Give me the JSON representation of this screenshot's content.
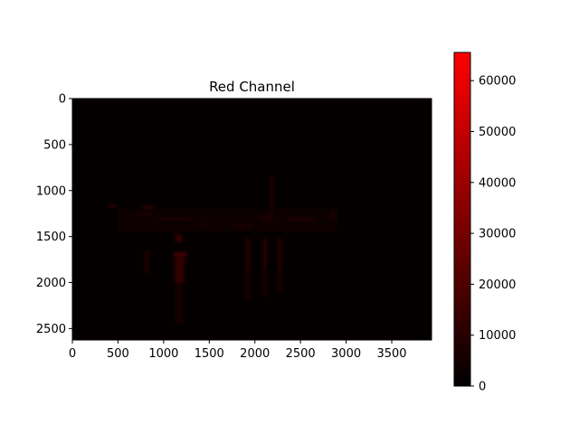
{
  "chart_data": {
    "type": "heatmap",
    "title": "Red Channel",
    "xlabel": "",
    "ylabel": "",
    "image_extent": {
      "x": [
        0,
        3936
      ],
      "y": [
        2624,
        0
      ]
    },
    "xticks": [
      0,
      500,
      1000,
      1500,
      2000,
      2500,
      3000,
      3500
    ],
    "xtick_labels": [
      "0",
      "500",
      "1000",
      "1500",
      "2000",
      "2500",
      "3000",
      "3500"
    ],
    "yticks": [
      0,
      500,
      1000,
      1500,
      2000,
      2500
    ],
    "ytick_labels": [
      "0",
      "500",
      "1000",
      "1500",
      "2000",
      "2500"
    ],
    "colorbar": {
      "range": [
        0,
        65535
      ],
      "ticks": [
        0,
        10000,
        20000,
        30000,
        40000,
        50000,
        60000
      ],
      "tick_labels": [
        "0",
        "10000",
        "20000",
        "30000",
        "40000",
        "50000",
        "60000"
      ],
      "colors": [
        "#000000",
        "#ff0000"
      ]
    },
    "features": [
      {
        "x": [
          950,
          1300
        ],
        "y": [
          1290,
          1330
        ],
        "value": 9000
      },
      {
        "x": [
          690,
          860
        ],
        "y": [
          1240,
          1280
        ],
        "value": 7000
      },
      {
        "x": [
          400,
          480
        ],
        "y": [
          1150,
          1180
        ],
        "value": 6500
      },
      {
        "x": [
          770,
          900
        ],
        "y": [
          1160,
          1200
        ],
        "value": 4000
      },
      {
        "x": [
          1380,
          1460
        ],
        "y": [
          1350,
          1400
        ],
        "value": 5000
      },
      {
        "x": [
          1760,
          1960
        ],
        "y": [
          1360,
          1420
        ],
        "value": 5500
      },
      {
        "x": [
          2050,
          2200
        ],
        "y": [
          1260,
          1340
        ],
        "value": 5500
      },
      {
        "x": [
          2360,
          2460
        ],
        "y": [
          1280,
          1340
        ],
        "value": 7000
      },
      {
        "x": [
          2470,
          2600
        ],
        "y": [
          1290,
          1340
        ],
        "value": 7500
      },
      {
        "x": [
          2600,
          2660
        ],
        "y": [
          1290,
          1330
        ],
        "value": 6500
      },
      {
        "x": [
          2820,
          2900
        ],
        "y": [
          1200,
          1320
        ],
        "value": 6000
      },
      {
        "x": [
          2170,
          2200
        ],
        "y": [
          840,
          1300
        ],
        "value": 4000
      },
      {
        "x": [
          1110,
          1260
        ],
        "y": [
          1670,
          1710
        ],
        "value": 8000
      },
      {
        "x": [
          1130,
          1200
        ],
        "y": [
          1480,
          1560
        ],
        "value": 6500
      },
      {
        "x": [
          1120,
          1230
        ],
        "y": [
          1700,
          2000
        ],
        "value": 5500
      },
      {
        "x": [
          1130,
          1210
        ],
        "y": [
          2000,
          2450
        ],
        "value": 2500
      },
      {
        "x": [
          790,
          840
        ],
        "y": [
          1650,
          1900
        ],
        "value": 3500
      },
      {
        "x": [
          1900,
          1940
        ],
        "y": [
          1520,
          1860
        ],
        "value": 4500
      },
      {
        "x": [
          2090,
          2130
        ],
        "y": [
          1520,
          1840
        ],
        "value": 4500
      },
      {
        "x": [
          2250,
          2290
        ],
        "y": [
          1520,
          1840
        ],
        "value": 4500
      },
      {
        "x": [
          1880,
          1950
        ],
        "y": [
          1860,
          2200
        ],
        "value": 2000
      },
      {
        "x": [
          2080,
          2140
        ],
        "y": [
          1840,
          2150
        ],
        "value": 2000
      },
      {
        "x": [
          2240,
          2300
        ],
        "y": [
          1840,
          2100
        ],
        "value": 2000
      },
      {
        "x": [
          500,
          2900
        ],
        "y": [
          1200,
          1450
        ],
        "value": 1500
      }
    ]
  }
}
